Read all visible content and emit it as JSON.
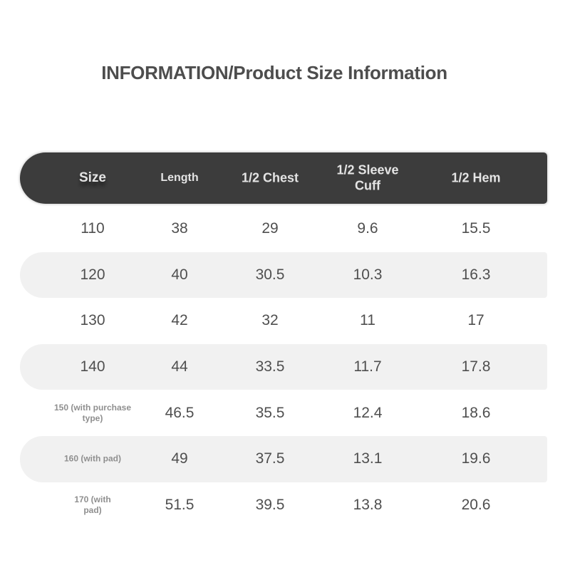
{
  "page": {
    "title": "INFORMATION/Product Size Information"
  },
  "size_table": {
    "headers": {
      "size": "Size",
      "length": "Length",
      "half_chest": "1/2 Chest",
      "half_sleeve_cuff": "1/2 Sleeve Cuff",
      "half_hem": "1/2 Hem"
    },
    "rows": [
      {
        "size": "110",
        "length": "38",
        "half_chest": "29",
        "half_sleeve_cuff": "9.6",
        "half_hem": "15.5"
      },
      {
        "size": "120",
        "length": "40",
        "half_chest": "30.5",
        "half_sleeve_cuff": "10.3",
        "half_hem": "16.3"
      },
      {
        "size": "130",
        "length": "42",
        "half_chest": "32",
        "half_sleeve_cuff": "11",
        "half_hem": "17"
      },
      {
        "size": "140",
        "length": "44",
        "half_chest": "33.5",
        "half_sleeve_cuff": "11.7",
        "half_hem": "17.8"
      },
      {
        "size": "150 (with purchase type)",
        "length": "46.5",
        "half_chest": "35.5",
        "half_sleeve_cuff": "12.4",
        "half_hem": "18.6"
      },
      {
        "size": "160 (with pad)",
        "length": "49",
        "half_chest": "37.5",
        "half_sleeve_cuff": "13.1",
        "half_hem": "19.6"
      },
      {
        "size": "170 (with pad)",
        "length": "51.5",
        "half_chest": "39.5",
        "half_sleeve_cuff": "13.8",
        "half_hem": "20.6"
      }
    ]
  },
  "colors": {
    "header_bar": "#3c3c3c",
    "header_text": "#e4e4e4",
    "shaded_row": "#f1f1f1",
    "value_text": "#4f4f4f",
    "small_label_text": "#8f8f8f",
    "title_text": "#4d4d4d",
    "background": "#ffffff"
  }
}
